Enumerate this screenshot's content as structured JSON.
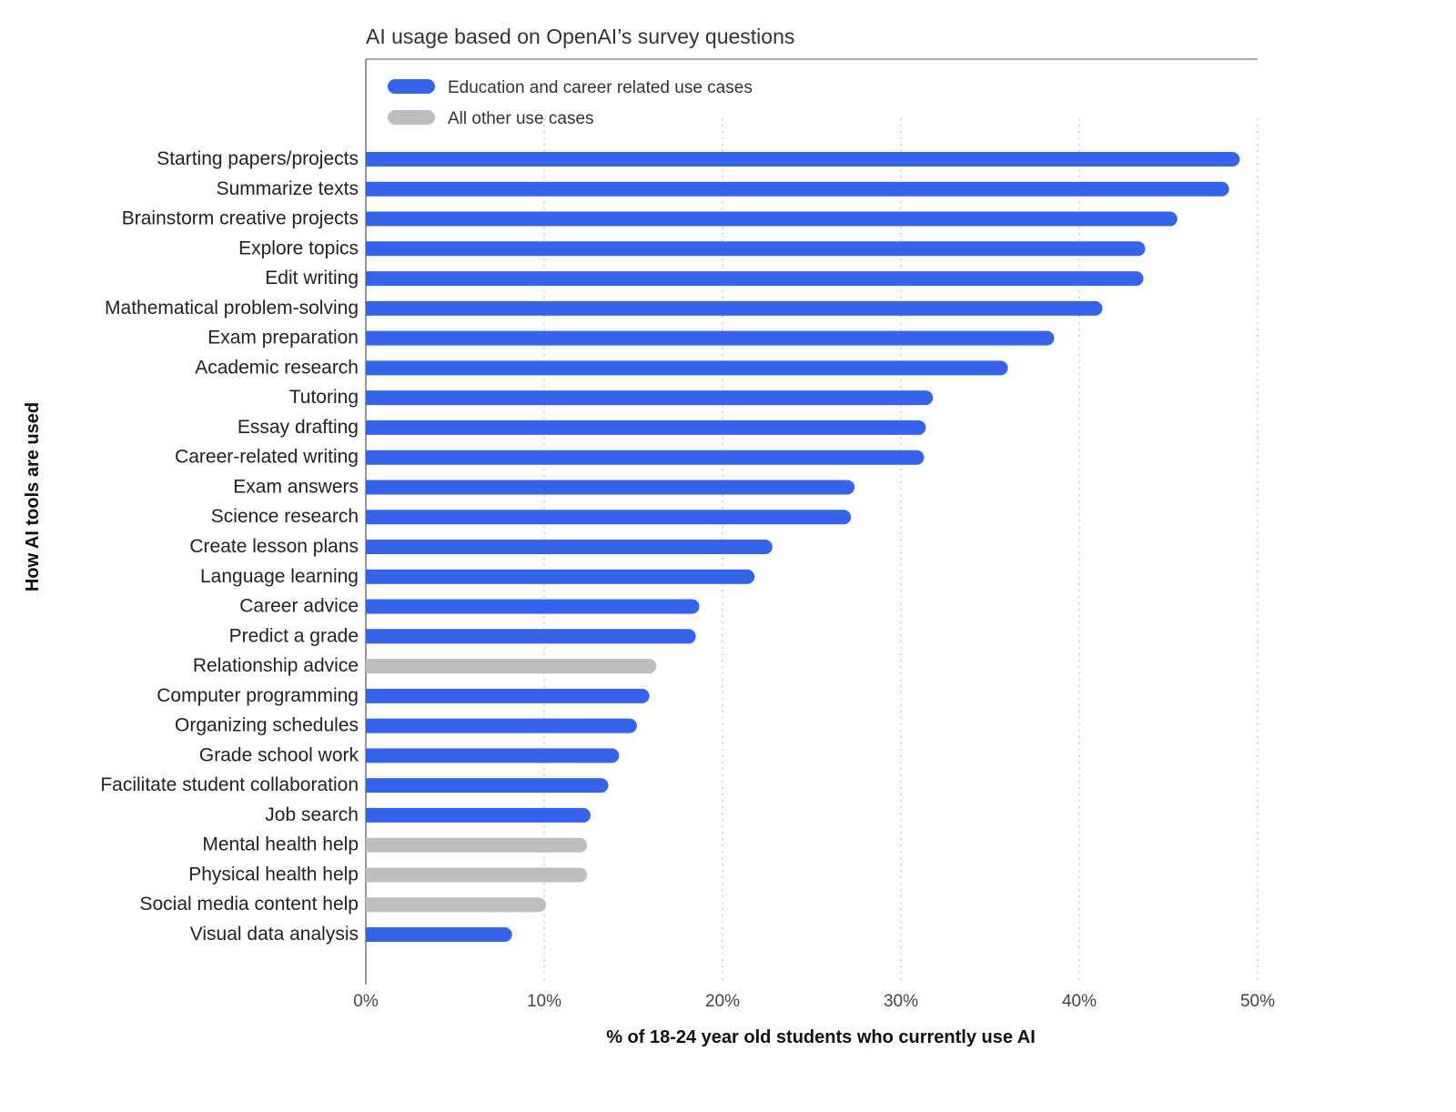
{
  "chart_data": {
    "type": "bar",
    "orientation": "horizontal",
    "title": "AI usage based on OpenAI’s survey questions",
    "xlabel": "% of 18-24 year old students who currently use AI",
    "ylabel": "How AI tools are used",
    "xlim": [
      0,
      50
    ],
    "xticks": [
      "0%",
      "10%",
      "20%",
      "30%",
      "40%",
      "50%"
    ],
    "grid": "vertical dotted",
    "legend_placement": "top-left",
    "legend": [
      {
        "name": "Education and career related use cases",
        "color": "#3563E9"
      },
      {
        "name": "All other use cases",
        "color": "#BDBDBD"
      }
    ],
    "categories": [
      "Starting papers/projects",
      "Summarize texts",
      "Brainstorm creative projects",
      "Explore topics",
      "Edit writing",
      "Mathematical problem-solving",
      "Exam preparation",
      "Academic research",
      "Tutoring",
      "Essay drafting",
      "Career-related writing",
      "Exam answers",
      "Science research",
      "Create lesson plans",
      "Language learning",
      "Career advice",
      "Predict a grade",
      "Relationship advice",
      "Computer programming",
      "Organizing schedules",
      "Grade school work",
      "Facilitate student collaboration",
      "Job search",
      "Mental health help",
      "Physical health help",
      "Social media content help",
      "Visual data analysis"
    ],
    "values": [
      49,
      48.4,
      45.5,
      43.7,
      43.6,
      41.3,
      38.6,
      36,
      31.8,
      31.4,
      31.3,
      27.4,
      27.2,
      22.8,
      21.8,
      18.7,
      18.5,
      16.3,
      15.9,
      15.2,
      14.2,
      13.6,
      12.6,
      12.4,
      12.4,
      10.1,
      8.2
    ],
    "groups": [
      "edu",
      "edu",
      "edu",
      "edu",
      "edu",
      "edu",
      "edu",
      "edu",
      "edu",
      "edu",
      "edu",
      "edu",
      "edu",
      "edu",
      "edu",
      "edu",
      "edu",
      "other",
      "edu",
      "edu",
      "edu",
      "edu",
      "edu",
      "other",
      "other",
      "other",
      "edu"
    ]
  }
}
